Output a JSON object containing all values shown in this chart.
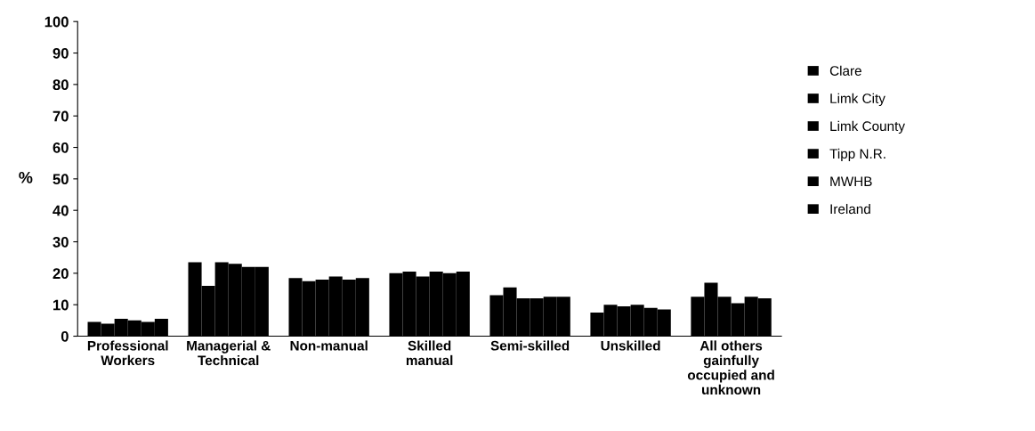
{
  "chart_data": {
    "type": "bar",
    "ylabel": "%",
    "categories": [
      "Professional\nWorkers",
      "Managerial &\nTechnical",
      "Non-manual",
      "Skilled\nmanual",
      "Semi-skilled",
      "Unskilled",
      "All others\ngainfully\noccupied and\nunknown"
    ],
    "series": [
      {
        "name": "Clare",
        "color": "#000000",
        "values": [
          4.5,
          23.5,
          18.5,
          20,
          13,
          7.5,
          12.5
        ]
      },
      {
        "name": "Limk City",
        "color": "#000000",
        "values": [
          4,
          16,
          17.5,
          20.5,
          15.5,
          10,
          17
        ]
      },
      {
        "name": "Limk County",
        "color": "#000000",
        "values": [
          5.5,
          23.5,
          18,
          19,
          12,
          9.5,
          12.5
        ]
      },
      {
        "name": "Tipp N.R.",
        "color": "#000000",
        "values": [
          5,
          23,
          19,
          20.5,
          12,
          10,
          10.5
        ]
      },
      {
        "name": "MWHB",
        "color": "#000000",
        "values": [
          4.5,
          22,
          18,
          20,
          12.5,
          9,
          12.5
        ]
      },
      {
        "name": "Ireland",
        "color": "#000000",
        "values": [
          5.5,
          22,
          18.5,
          20.5,
          12.5,
          8.5,
          12
        ]
      }
    ],
    "ylim": [
      0,
      100
    ],
    "yticks": [
      0,
      10,
      20,
      30,
      40,
      50,
      60,
      70,
      80,
      90,
      100
    ],
    "grid": false,
    "legend": "right"
  }
}
